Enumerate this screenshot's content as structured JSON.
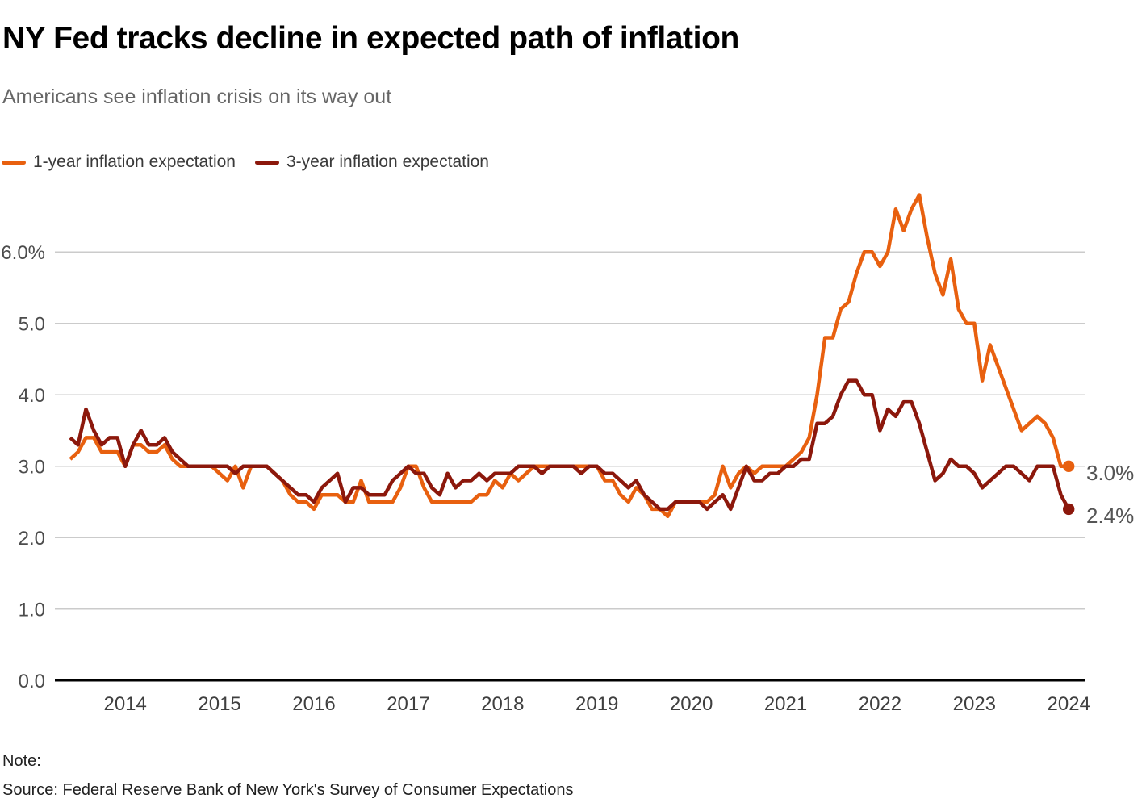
{
  "header": {
    "title": "NY Fed tracks decline in expected path of inflation",
    "subtitle": "Americans see inflation crisis on its way out"
  },
  "legend": [
    {
      "label": "1-year inflation expectation",
      "color": "#E8600F"
    },
    {
      "label": "3-year inflation expectation",
      "color": "#8C180C"
    }
  ],
  "colors": {
    "grid_line": "#CBCBCB",
    "axis_line": "#000000",
    "tick_label": "#4c4c4c",
    "year_label": "#3f3f3f",
    "end_label": "#555555"
  },
  "chart_data": {
    "type": "line",
    "unit": "percent",
    "frequency": "monthly",
    "x_start": "2013-06",
    "x_end": "2024-01",
    "grid": true,
    "legend_position": "top-left",
    "ylim": [
      0.0,
      6.9
    ],
    "y_ticks": [
      {
        "value": 6.0,
        "label": "6.0%"
      },
      {
        "value": 5.0,
        "label": "5.0"
      },
      {
        "value": 4.0,
        "label": "4.0"
      },
      {
        "value": 3.0,
        "label": "3.0"
      },
      {
        "value": 2.0,
        "label": "2.0"
      },
      {
        "value": 1.0,
        "label": "1.0"
      },
      {
        "value": 0.0,
        "label": "0.0"
      }
    ],
    "x_year_ticks": [
      2014,
      2015,
      2016,
      2017,
      2018,
      2019,
      2020,
      2021,
      2022,
      2023,
      2024
    ],
    "series": [
      {
        "name": "1-year inflation expectation",
        "color": "#E8600F",
        "end_label": "3.0%",
        "values": [
          3.1,
          3.2,
          3.4,
          3.4,
          3.2,
          3.2,
          3.2,
          3.0,
          3.3,
          3.3,
          3.2,
          3.2,
          3.3,
          3.1,
          3.0,
          3.0,
          3.0,
          3.0,
          3.0,
          2.9,
          2.8,
          3.0,
          2.7,
          3.0,
          3.0,
          3.0,
          2.9,
          2.8,
          2.6,
          2.5,
          2.5,
          2.4,
          2.6,
          2.6,
          2.6,
          2.5,
          2.5,
          2.8,
          2.5,
          2.5,
          2.5,
          2.5,
          2.7,
          3.0,
          3.0,
          2.7,
          2.5,
          2.5,
          2.5,
          2.5,
          2.5,
          2.5,
          2.6,
          2.6,
          2.8,
          2.7,
          2.9,
          2.8,
          2.9,
          3.0,
          3.0,
          3.0,
          3.0,
          3.0,
          3.0,
          3.0,
          3.0,
          3.0,
          2.8,
          2.8,
          2.6,
          2.5,
          2.7,
          2.6,
          2.4,
          2.4,
          2.3,
          2.5,
          2.5,
          2.5,
          2.5,
          2.5,
          2.6,
          3.0,
          2.7,
          2.9,
          3.0,
          2.9,
          3.0,
          3.0,
          3.0,
          3.0,
          3.1,
          3.2,
          3.4,
          4.0,
          4.8,
          4.8,
          5.2,
          5.3,
          5.7,
          6.0,
          6.0,
          5.8,
          6.0,
          6.6,
          6.3,
          6.6,
          6.8,
          6.2,
          5.7,
          5.4,
          5.9,
          5.2,
          5.0,
          5.0,
          4.2,
          4.7,
          4.4,
          4.1,
          3.8,
          3.5,
          3.6,
          3.7,
          3.6,
          3.4,
          3.0,
          3.0
        ]
      },
      {
        "name": "3-year inflation expectation",
        "color": "#8C180C",
        "end_label": "2.4%",
        "values": [
          3.4,
          3.3,
          3.8,
          3.5,
          3.3,
          3.4,
          3.4,
          3.0,
          3.3,
          3.5,
          3.3,
          3.3,
          3.4,
          3.2,
          3.1,
          3.0,
          3.0,
          3.0,
          3.0,
          3.0,
          3.0,
          2.9,
          3.0,
          3.0,
          3.0,
          3.0,
          2.9,
          2.8,
          2.7,
          2.6,
          2.6,
          2.5,
          2.7,
          2.8,
          2.9,
          2.5,
          2.7,
          2.7,
          2.6,
          2.6,
          2.6,
          2.8,
          2.9,
          3.0,
          2.9,
          2.9,
          2.7,
          2.6,
          2.9,
          2.7,
          2.8,
          2.8,
          2.9,
          2.8,
          2.9,
          2.9,
          2.9,
          3.0,
          3.0,
          3.0,
          2.9,
          3.0,
          3.0,
          3.0,
          3.0,
          2.9,
          3.0,
          3.0,
          2.9,
          2.9,
          2.8,
          2.7,
          2.8,
          2.6,
          2.5,
          2.4,
          2.4,
          2.5,
          2.5,
          2.5,
          2.5,
          2.4,
          2.5,
          2.6,
          2.4,
          2.7,
          3.0,
          2.8,
          2.8,
          2.9,
          2.9,
          3.0,
          3.0,
          3.1,
          3.1,
          3.6,
          3.6,
          3.7,
          4.0,
          4.2,
          4.2,
          4.0,
          4.0,
          3.5,
          3.8,
          3.7,
          3.9,
          3.9,
          3.6,
          3.2,
          2.8,
          2.9,
          3.1,
          3.0,
          3.0,
          2.9,
          2.7,
          2.8,
          2.9,
          3.0,
          3.0,
          2.9,
          2.8,
          3.0,
          3.0,
          3.0,
          2.6,
          2.4
        ]
      }
    ]
  },
  "footer": {
    "note_label": "Note:",
    "source": "Source: Federal Reserve Bank of New York's Survey of Consumer Expectations"
  }
}
